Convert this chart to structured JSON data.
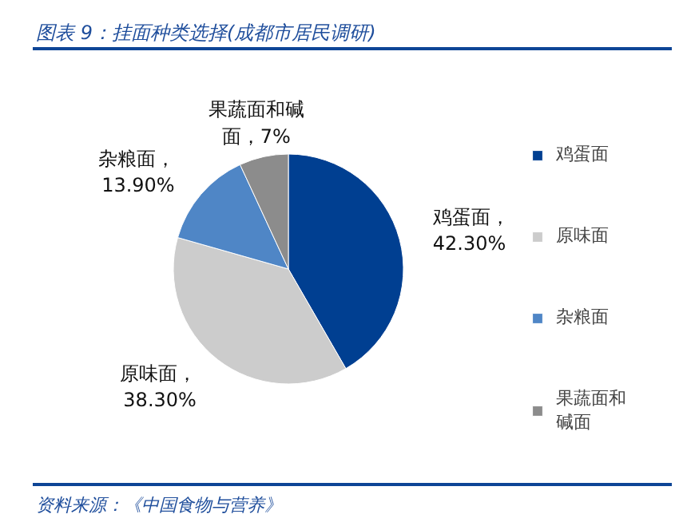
{
  "chart_data": {
    "type": "pie",
    "title": "图表 9：挂面种类选择(成都市居民调研)",
    "categories": [
      "鸡蛋面",
      "原味面",
      "杂粮面",
      "果蔬面和碱面"
    ],
    "values": [
      42.3,
      38.3,
      13.9,
      7
    ],
    "value_labels": [
      "鸡蛋面，42.30%",
      "原味面，38.30%",
      "杂粮面，13.90%",
      "果蔬面和碱面，7%"
    ],
    "colors": [
      "#003f91",
      "#cccccc",
      "#4f86c6",
      "#8c8c8c"
    ],
    "legend": "right",
    "annotations": [
      "资料来源：《中国食物与营养》"
    ]
  }
}
